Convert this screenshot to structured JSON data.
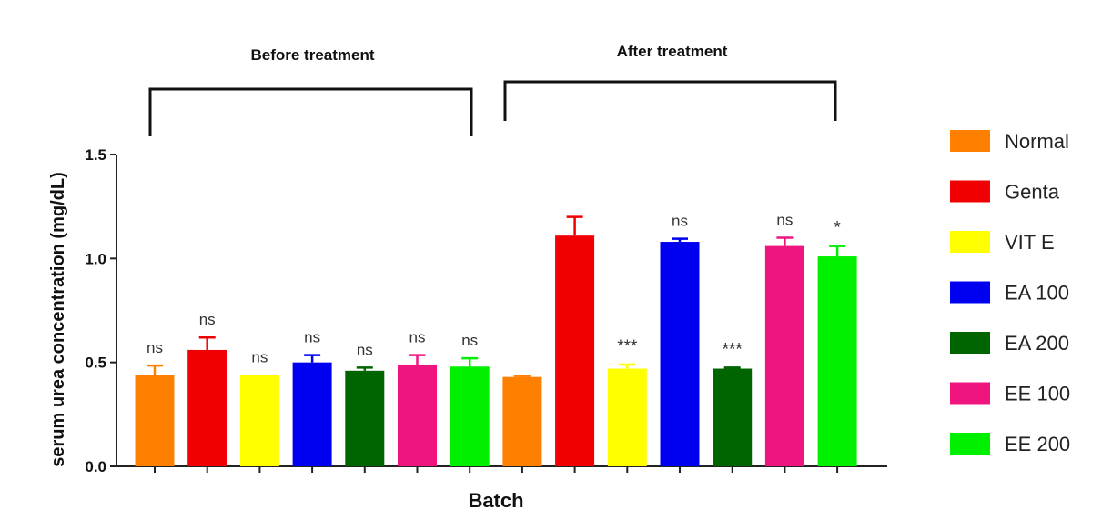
{
  "chart_data": {
    "type": "bar",
    "xlabel": "Batch",
    "ylabel": "serum urea concentration (mg/dL)",
    "ylim": [
      0,
      1.5
    ],
    "yticks": [
      "0.0",
      "0.5",
      "1.0",
      "1.5"
    ],
    "grid": false,
    "legend_position": "right",
    "groups": [
      {
        "label": "Before treatment",
        "bars": [
          {
            "series": "Normal",
            "value": 0.44,
            "error": 0.045,
            "sig": "ns"
          },
          {
            "series": "Genta",
            "value": 0.56,
            "error": 0.06,
            "sig": "ns"
          },
          {
            "series": "VIT E",
            "value": 0.44,
            "error": 0.0,
            "sig": "ns"
          },
          {
            "series": "EA 100",
            "value": 0.5,
            "error": 0.035,
            "sig": "ns"
          },
          {
            "series": "EA 200",
            "value": 0.46,
            "error": 0.015,
            "sig": "ns"
          },
          {
            "series": "EE 100",
            "value": 0.49,
            "error": 0.045,
            "sig": "ns"
          },
          {
            "series": "EE 200",
            "value": 0.48,
            "error": 0.04,
            "sig": "ns"
          }
        ]
      },
      {
        "label": "After treatment",
        "bars": [
          {
            "series": "Normal",
            "value": 0.43,
            "error": 0.005,
            "sig": ""
          },
          {
            "series": "Genta",
            "value": 1.11,
            "error": 0.09,
            "sig": ""
          },
          {
            "series": "VIT E",
            "value": 0.47,
            "error": 0.02,
            "sig": "***"
          },
          {
            "series": "EA 100",
            "value": 1.08,
            "error": 0.015,
            "sig": "ns"
          },
          {
            "series": "EA 200",
            "value": 0.47,
            "error": 0.005,
            "sig": "***"
          },
          {
            "series": "EE 100",
            "value": 1.06,
            "error": 0.04,
            "sig": "ns"
          },
          {
            "series": "EE 200",
            "value": 1.01,
            "error": 0.05,
            "sig": "*"
          }
        ]
      }
    ],
    "legend": [
      {
        "name": "Normal",
        "color": "#ff8000"
      },
      {
        "name": "Genta",
        "color": "#f00000"
      },
      {
        "name": "VIT E",
        "color": "#ffff00"
      },
      {
        "name": "EA 100",
        "color": "#0000f0"
      },
      {
        "name": "EA 200",
        "color": "#006400"
      },
      {
        "name": "EE 100",
        "color": "#f0147f"
      },
      {
        "name": "EE 200",
        "color": "#00f000"
      }
    ]
  }
}
